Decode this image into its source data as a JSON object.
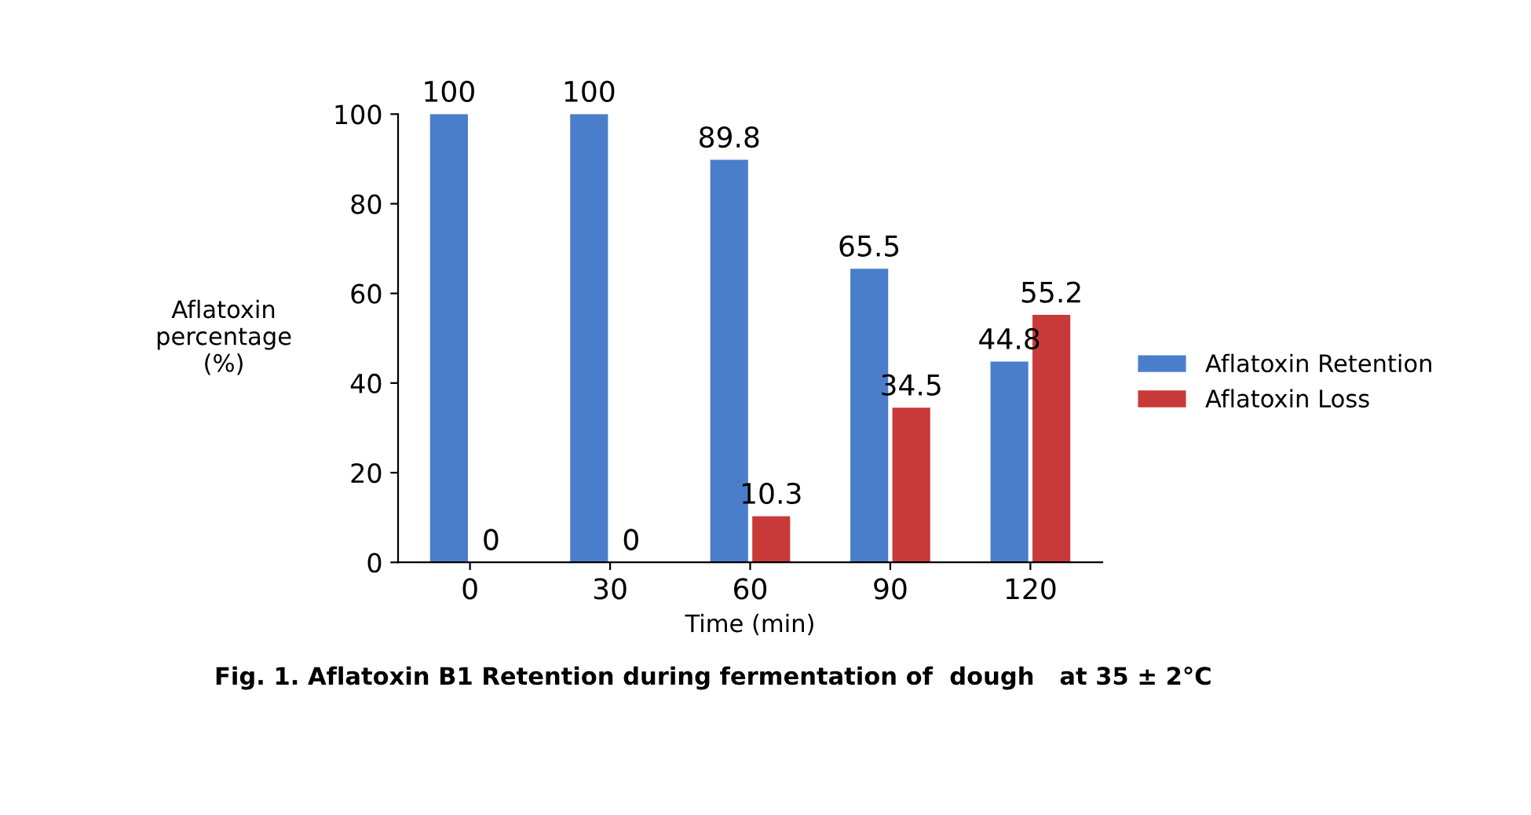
{
  "chart_data": {
    "type": "bar",
    "categories": [
      "0",
      "30",
      "60",
      "90",
      "120"
    ],
    "series": [
      {
        "name": "Aflatoxin Retention",
        "color": "#4a7ecb",
        "values": [
          100,
          100,
          89.8,
          65.5,
          44.8
        ]
      },
      {
        "name": "Aflatoxin Loss",
        "color": "#c8393a",
        "values": [
          0,
          0,
          10.3,
          34.5,
          55.2
        ]
      }
    ],
    "xlabel": "Time (min)",
    "ylabel": "Aflatoxin\npercentage\n(%)",
    "ylim": [
      0,
      100
    ],
    "yticks": [
      0,
      20,
      40,
      60,
      80,
      100
    ],
    "data_labels": true,
    "grid": false,
    "legend": "right",
    "annotations": [
      "Fig. 1. Aflatoxin B1 Retention during fermentation of  dough   at 35 ± 2°C"
    ]
  }
}
